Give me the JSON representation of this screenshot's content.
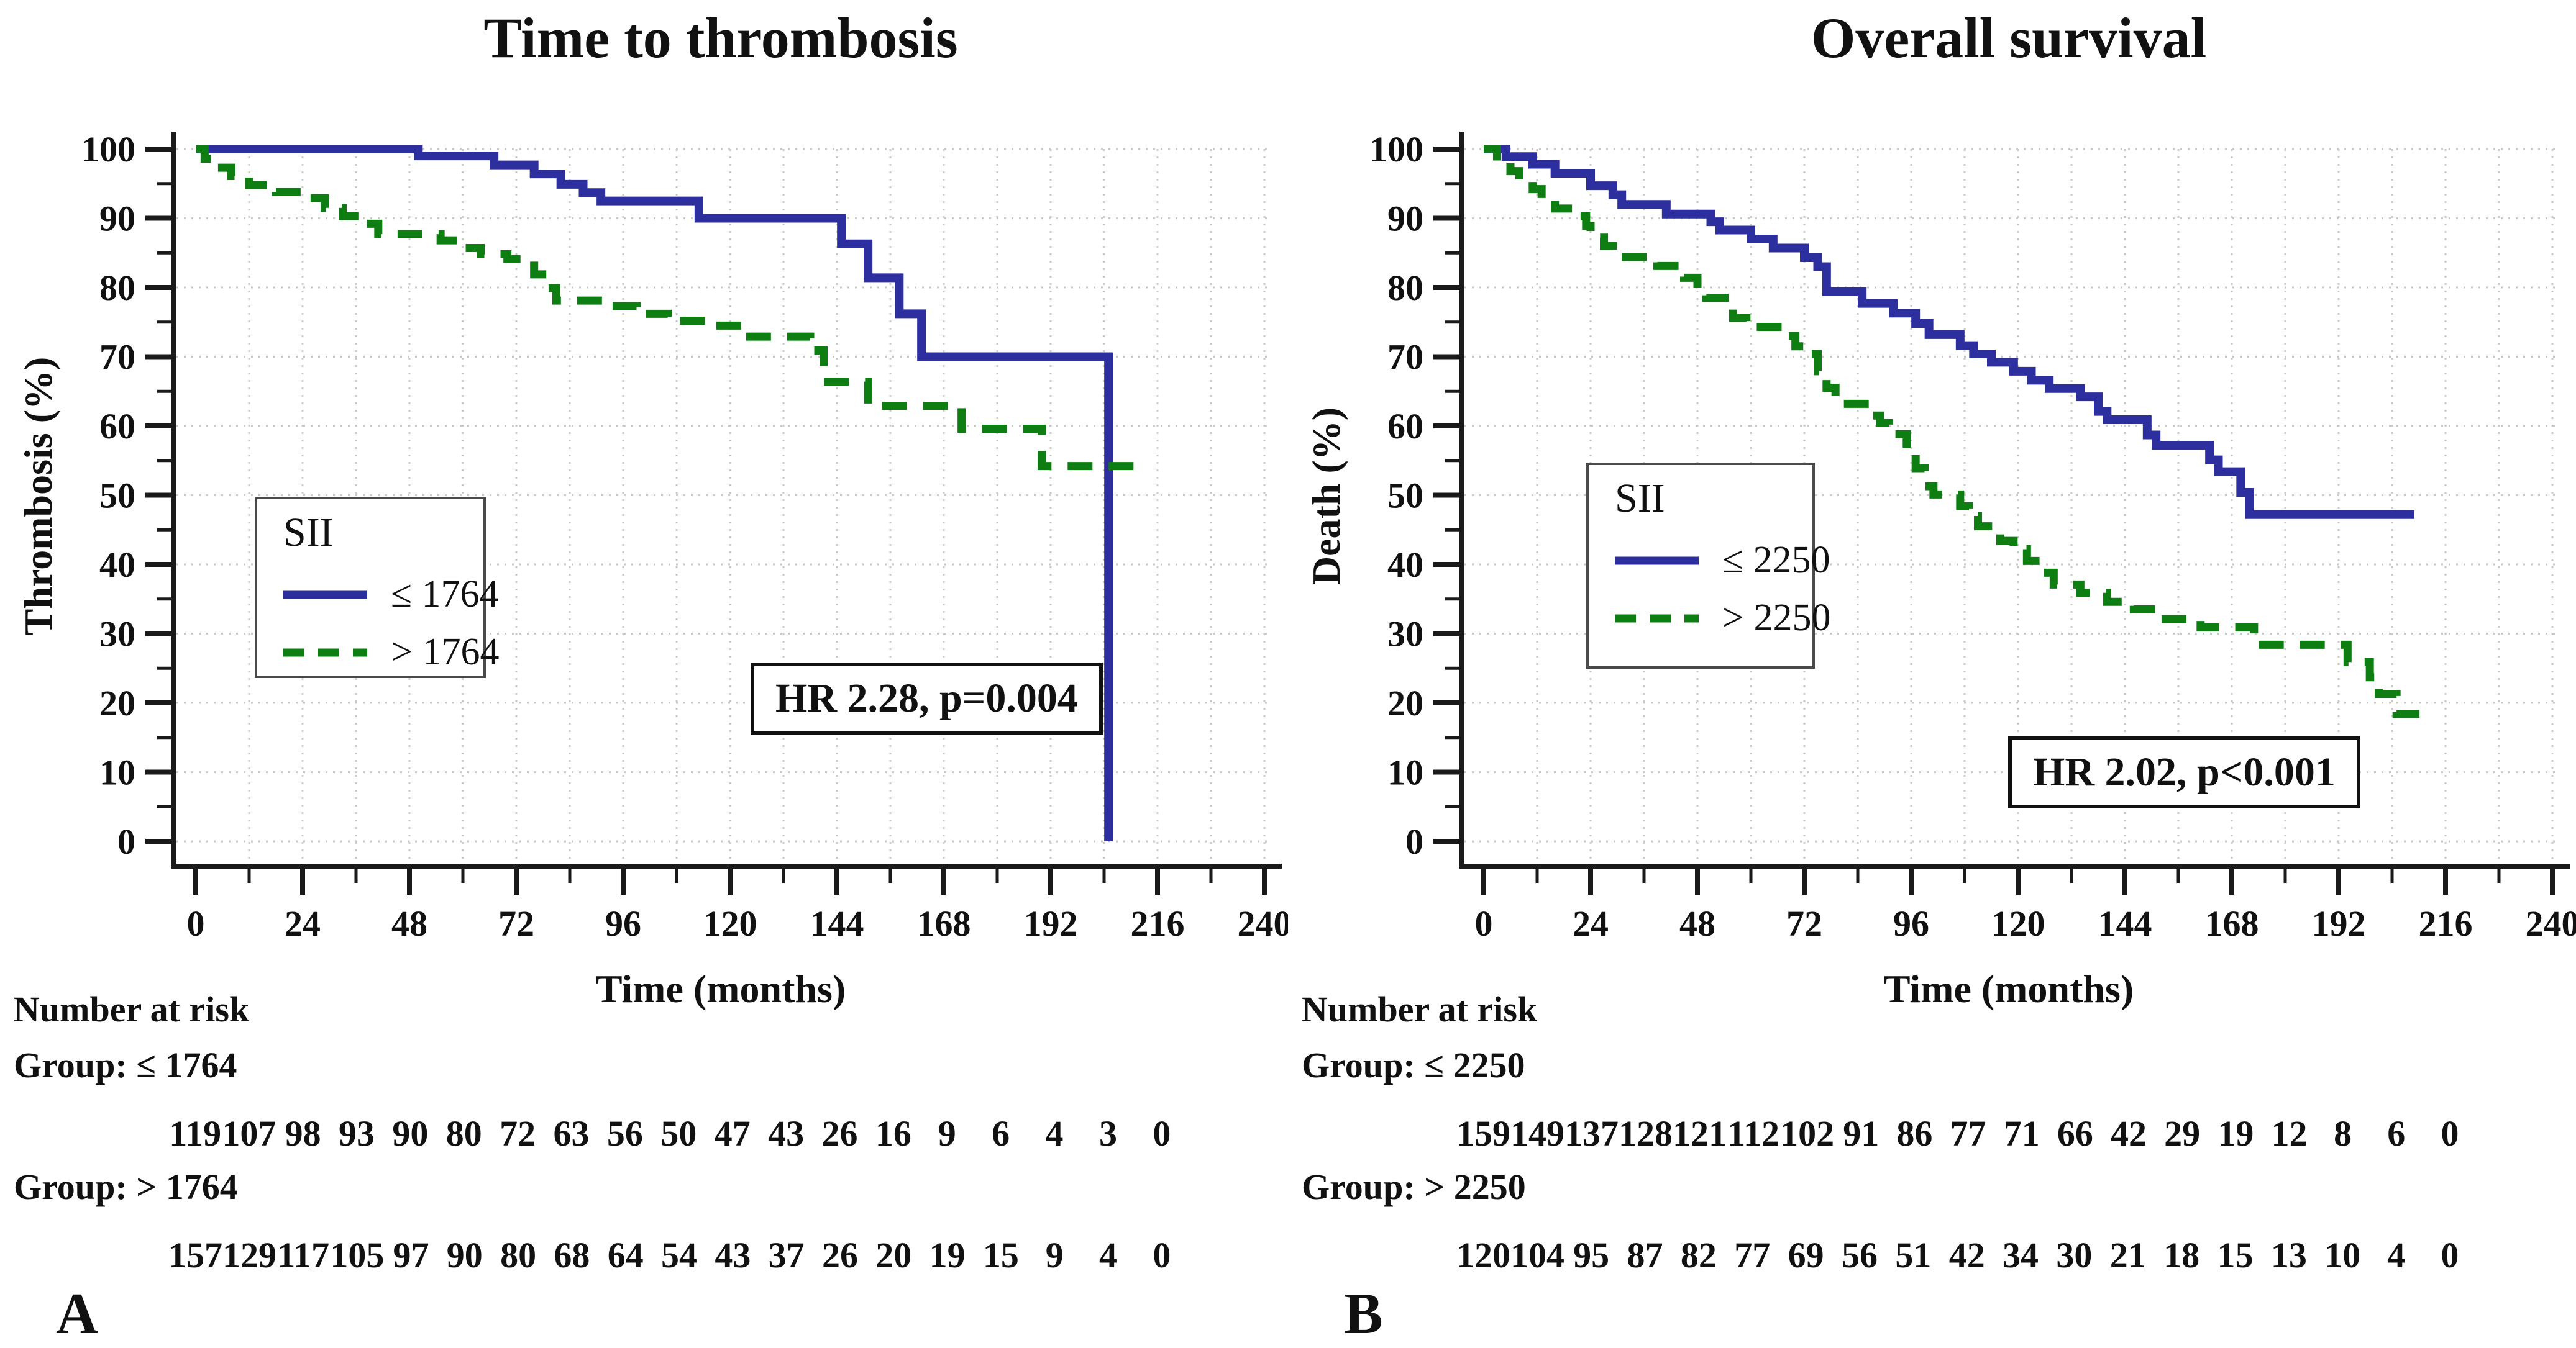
{
  "figure": {
    "background": "#ffffff",
    "text_color": "#111111",
    "grid_color": "#c9c9c9"
  },
  "chart_data": [
    {
      "type": "line",
      "subtype": "kaplan-meier-step",
      "panel_label": "A",
      "title": "Time to thrombosis",
      "xlabel": "Time (months)",
      "ylabel": "Thrombosis (%)",
      "xlim": [
        0,
        240
      ],
      "ylim": [
        0,
        100
      ],
      "xticks": [
        0,
        24,
        48,
        72,
        96,
        120,
        144,
        168,
        192,
        216,
        240
      ],
      "xtick_minor_step": 12,
      "yticks": [
        0,
        10,
        20,
        30,
        40,
        50,
        60,
        70,
        80,
        90,
        100
      ],
      "ytick_minor_step": 5,
      "grid": "dotted",
      "legend": {
        "title": "SII",
        "position": "lower-left"
      },
      "annotation": "HR 2.28, p=0.004",
      "series": [
        {
          "name": "≤ 1764",
          "color": "#2e2f9f",
          "style": "solid",
          "steps": [
            [
              0,
              100
            ],
            [
              50,
              99
            ],
            [
              67,
              97.7
            ],
            [
              76,
              96.4
            ],
            [
              82,
              94.9
            ],
            [
              87,
              93.7
            ],
            [
              91,
              92.5
            ],
            [
              113,
              90
            ],
            [
              145,
              86.3
            ],
            [
              151,
              81.4
            ],
            [
              158,
              76.2
            ],
            [
              163,
              70
            ],
            [
              205,
              0
            ]
          ]
        },
        {
          "name": "> 1764",
          "color": "#0f7e12",
          "style": "dashed",
          "steps": [
            [
              0,
              100
            ],
            [
              2,
              98.6
            ],
            [
              5,
              97.3
            ],
            [
              8,
              96.1
            ],
            [
              12,
              94.8
            ],
            [
              18,
              93.8
            ],
            [
              24,
              92.9
            ],
            [
              29,
              91.5
            ],
            [
              33,
              90.3
            ],
            [
              37,
              89.2
            ],
            [
              41,
              87.7
            ],
            [
              55,
              86.8
            ],
            [
              60,
              85.7
            ],
            [
              64,
              84.8
            ],
            [
              70,
              84.1
            ],
            [
              76,
              81.9
            ],
            [
              79,
              79.9
            ],
            [
              81,
              78.1
            ],
            [
              93,
              77.3
            ],
            [
              99,
              76.2
            ],
            [
              106,
              75.2
            ],
            [
              115,
              74.5
            ],
            [
              123,
              72.9
            ],
            [
              138,
              70.9
            ],
            [
              141,
              66.4
            ],
            [
              151,
              62.9
            ],
            [
              172,
              59.6
            ],
            [
              190,
              54.2
            ],
            [
              211,
              54.2
            ]
          ]
        }
      ],
      "number_at_risk": {
        "header": "Number at risk",
        "times": [
          0,
          12,
          24,
          36,
          48,
          60,
          72,
          84,
          96,
          108,
          120,
          132,
          144,
          156,
          168,
          180,
          192,
          204,
          216
        ],
        "groups": [
          {
            "label": "Group: ≤ 1764",
            "counts": [
              119,
              107,
              98,
              93,
              90,
              80,
              72,
              63,
              56,
              50,
              47,
              43,
              26,
              16,
              9,
              6,
              4,
              3,
              0
            ]
          },
          {
            "label": "Group: > 1764",
            "counts": [
              157,
              129,
              117,
              105,
              97,
              90,
              80,
              68,
              64,
              54,
              43,
              37,
              26,
              20,
              19,
              15,
              9,
              4,
              0
            ]
          }
        ]
      }
    },
    {
      "type": "line",
      "subtype": "kaplan-meier-step",
      "panel_label": "B",
      "title": "Overall survival",
      "xlabel": "Time (months)",
      "ylabel": "Death (%)",
      "xlim": [
        0,
        240
      ],
      "ylim": [
        0,
        100
      ],
      "xticks": [
        0,
        24,
        48,
        72,
        96,
        120,
        144,
        168,
        192,
        216,
        240
      ],
      "xtick_minor_step": 12,
      "yticks": [
        0,
        10,
        20,
        30,
        40,
        50,
        60,
        70,
        80,
        90,
        100
      ],
      "ytick_minor_step": 5,
      "grid": "dotted",
      "legend": {
        "title": "SII",
        "position": "lower-left"
      },
      "annotation": "HR 2.02, p<0.001",
      "series": [
        {
          "name": "≤ 2250",
          "color": "#2e2f9f",
          "style": "solid",
          "steps": [
            [
              0,
              100
            ],
            [
              5,
              98.9
            ],
            [
              11,
              97.8
            ],
            [
              16,
              96.5
            ],
            [
              24,
              94.7
            ],
            [
              29,
              93.4
            ],
            [
              31,
              92
            ],
            [
              41,
              90.6
            ],
            [
              51,
              89.5
            ],
            [
              53,
              88.3
            ],
            [
              60,
              87
            ],
            [
              65,
              85.7
            ],
            [
              72,
              84.3
            ],
            [
              75,
              83
            ],
            [
              77,
              79.4
            ],
            [
              85,
              77.7
            ],
            [
              92,
              76.3
            ],
            [
              97,
              74.8
            ],
            [
              100,
              73.2
            ],
            [
              107,
              71.6
            ],
            [
              110,
              70.4
            ],
            [
              114,
              69.2
            ],
            [
              119,
              67.9
            ],
            [
              123,
              66.6
            ],
            [
              127,
              65.4
            ],
            [
              134,
              64.2
            ],
            [
              138,
              62.1
            ],
            [
              140,
              60.9
            ],
            [
              149,
              58.7
            ],
            [
              151,
              57.2
            ],
            [
              163,
              55.1
            ],
            [
              165,
              53.4
            ],
            [
              170,
              50.4
            ],
            [
              172,
              47.2
            ],
            [
              209,
              47.2
            ]
          ]
        },
        {
          "name": "> 2250",
          "color": "#0f7e12",
          "style": "dashed",
          "steps": [
            [
              0,
              100
            ],
            [
              3,
              98.2
            ],
            [
              6,
              96.8
            ],
            [
              8,
              95.4
            ],
            [
              11,
              94.2
            ],
            [
              13,
              92.9
            ],
            [
              16,
              91.4
            ],
            [
              20,
              90.3
            ],
            [
              23,
              88.9
            ],
            [
              24,
              87.2
            ],
            [
              27,
              86
            ],
            [
              29,
              84.4
            ],
            [
              39,
              83.1
            ],
            [
              45,
              81.4
            ],
            [
              48,
              79.7
            ],
            [
              50,
              78.5
            ],
            [
              56,
              75.6
            ],
            [
              59,
              74.3
            ],
            [
              67,
              73
            ],
            [
              70,
              71.5
            ],
            [
              73,
              70.4
            ],
            [
              75,
              67.9
            ],
            [
              77,
              65.5
            ],
            [
              79,
              63.2
            ],
            [
              87,
              61.5
            ],
            [
              89,
              60.4
            ],
            [
              91,
              58.8
            ],
            [
              95,
              56.3
            ],
            [
              97,
              53.9
            ],
            [
              99,
              51.3
            ],
            [
              101,
              50.1
            ],
            [
              107,
              48.4
            ],
            [
              109,
              47
            ],
            [
              111,
              45.5
            ],
            [
              116,
              43.4
            ],
            [
              119,
              42.2
            ],
            [
              122,
              40.5
            ],
            [
              125,
              38.8
            ],
            [
              128,
              37.1
            ],
            [
              134,
              35.9
            ],
            [
              140,
              34.6
            ],
            [
              146,
              33.5
            ],
            [
              151,
              32.1
            ],
            [
              161,
              30.9
            ],
            [
              173,
              28.4
            ],
            [
              194,
              25.9
            ],
            [
              199,
              23.7
            ],
            [
              201,
              21.3
            ],
            [
              205,
              18.4
            ],
            [
              213,
              18.4
            ]
          ]
        }
      ],
      "number_at_risk": {
        "header": "Number at risk",
        "times": [
          0,
          12,
          24,
          36,
          48,
          60,
          72,
          84,
          96,
          108,
          120,
          132,
          144,
          156,
          168,
          180,
          192,
          204,
          216
        ],
        "groups": [
          {
            "label": "Group: ≤ 2250",
            "counts": [
              159,
              149,
              137,
              128,
              121,
              112,
              102,
              91,
              86,
              77,
              71,
              66,
              42,
              29,
              19,
              12,
              8,
              6,
              0
            ]
          },
          {
            "label": "Group: > 2250",
            "counts": [
              120,
              104,
              95,
              87,
              82,
              77,
              69,
              56,
              51,
              42,
              34,
              30,
              21,
              18,
              15,
              13,
              10,
              4,
              0
            ]
          }
        ]
      }
    }
  ]
}
